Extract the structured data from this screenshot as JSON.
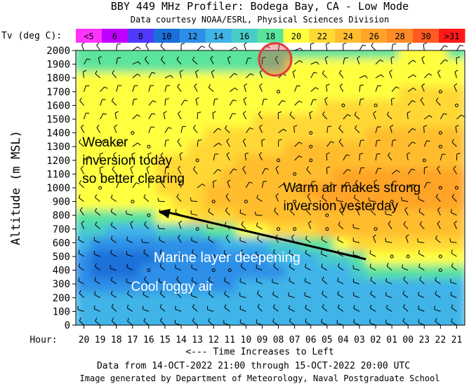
{
  "title": "BBY 449 MHz Profiler:    Bodega Bay, CA    - Low Mode",
  "subtitle": "Data courtesy NOAA/ESRL, Physical Sciences Division",
  "footer": {
    "line1": "Data from 14-OCT-2022 21:00 through 15-OCT-2022 20:00 UTC",
    "line2": "Image generated by Department of Meteorology, Naval Postgraduate School"
  },
  "colors": {
    "c_lt5": "#ff33ff",
    "c_6": "#c000ff",
    "c_8": "#5038ff",
    "c_10": "#1a6fd8",
    "c_12": "#2e8fe8",
    "c_14": "#40b4e8",
    "c_16": "#48ccc8",
    "c_18": "#5be39c",
    "c_20": "#ffff40",
    "c_22": "#ffd836",
    "c_24": "#ffbd2e",
    "c_26": "#ffa428",
    "c_28": "#ff8a28",
    "c_30": "#ff5a20",
    "c_gt31": "#ff1a1a",
    "arrow": "#000000",
    "highlight": "#e23a3a",
    "annotation_text": "#000000",
    "annotation_text_light": "#ffffff"
  },
  "chart_data": {
    "type": "heatmap",
    "title": "BBY 449 MHz Profiler:    Bodega Bay, CA    - Low Mode",
    "colorbar_label": "Tv (deg C):",
    "colorbar": [
      {
        "label": "<5",
        "color": "#ff33ff"
      },
      {
        "label": "6",
        "color": "#c000ff"
      },
      {
        "label": "8",
        "color": "#5038ff"
      },
      {
        "label": "10",
        "color": "#1a6fd8"
      },
      {
        "label": "12",
        "color": "#2e8fe8"
      },
      {
        "label": "14",
        "color": "#40b4e8"
      },
      {
        "label": "16",
        "color": "#48ccc8"
      },
      {
        "label": "18",
        "color": "#5be39c"
      },
      {
        "label": "20",
        "color": "#ffff40"
      },
      {
        "label": "22",
        "color": "#ffd836"
      },
      {
        "label": "24",
        "color": "#ffbd2e"
      },
      {
        "label": "26",
        "color": "#ffa428"
      },
      {
        "label": "28",
        "color": "#ff8a28"
      },
      {
        "label": "30",
        "color": "#ff5a20"
      },
      {
        "label": ">31",
        "color": "#ff1a1a"
      }
    ],
    "ylabel": "Altitude  (m MSL)",
    "ylim": [
      0,
      2000
    ],
    "yticks": [
      "0",
      "100",
      "200",
      "300",
      "400",
      "500",
      "600",
      "700",
      "800",
      "900",
      "1000",
      "1100",
      "1200",
      "1300",
      "1400",
      "1500",
      "1600",
      "1700",
      "1800",
      "1900",
      "2000"
    ],
    "xlabel": "Hour:",
    "xticks": [
      "20",
      "19",
      "18",
      "17",
      "16",
      "15",
      "14",
      "13",
      "12",
      "11",
      "10",
      "09",
      "08",
      "07",
      "06",
      "05",
      "04",
      "03",
      "02",
      "01",
      "00",
      "23",
      "22",
      "21"
    ],
    "xnote": "<--- Time Increases to Left",
    "hours": [
      20,
      19,
      18,
      17,
      16,
      15,
      14,
      13,
      12,
      11,
      10,
      9,
      8,
      7,
      6,
      5,
      4,
      3,
      2,
      1,
      0,
      23,
      22,
      21
    ],
    "altitudes": [
      0,
      100,
      200,
      300,
      400,
      500,
      600,
      700,
      800,
      900,
      1000,
      1100,
      1200,
      1300,
      1400,
      1500,
      1600,
      1700,
      1800,
      1900,
      2000
    ],
    "tv": [
      [
        15,
        15,
        15,
        15,
        15,
        15,
        15,
        15,
        15,
        15,
        15,
        15,
        15,
        15,
        15,
        15,
        15,
        15,
        15,
        15,
        15,
        15,
        15,
        15
      ],
      [
        15,
        15,
        15,
        15,
        15,
        15,
        15,
        15,
        15,
        15,
        15,
        15,
        15,
        15,
        15,
        15,
        15,
        15,
        15,
        15,
        15,
        15,
        15,
        15
      ],
      [
        14,
        14,
        14,
        14,
        14,
        14,
        14,
        14,
        14,
        14,
        14,
        14,
        15,
        15,
        15,
        15,
        15,
        15,
        15,
        15,
        15,
        15,
        15,
        15
      ],
      [
        13,
        13,
        12,
        12,
        12,
        13,
        13,
        13,
        13,
        13,
        14,
        14,
        14,
        14,
        14,
        14,
        15,
        15,
        15,
        15,
        15,
        15,
        15,
        15
      ],
      [
        12,
        11,
        11,
        11,
        12,
        12,
        12,
        12,
        12,
        12,
        12,
        13,
        13,
        14,
        14,
        15,
        15,
        17,
        19,
        19,
        19,
        19,
        19,
        19
      ],
      [
        12,
        11,
        11,
        11,
        11,
        12,
        12,
        12,
        12,
        12,
        13,
        13,
        14,
        14,
        15,
        16,
        17,
        19,
        21,
        21,
        21,
        21,
        21,
        21
      ],
      [
        14,
        12,
        12,
        12,
        12,
        12,
        12,
        13,
        13,
        14,
        14,
        15,
        16,
        17,
        18,
        19,
        21,
        23,
        23,
        23,
        23,
        23,
        23,
        23
      ],
      [
        17,
        16,
        15,
        15,
        15,
        16,
        16,
        17,
        18,
        19,
        20,
        21,
        22,
        23,
        23,
        24,
        24,
        24,
        25,
        25,
        25,
        25,
        25,
        25
      ],
      [
        19,
        19,
        19,
        18,
        19,
        20,
        21,
        22,
        23,
        23,
        24,
        24,
        25,
        25,
        25,
        25,
        25,
        25,
        25,
        25,
        25,
        25,
        25,
        25
      ],
      [
        21,
        21,
        21,
        21,
        21,
        21,
        22,
        23,
        24,
        24,
        25,
        25,
        25,
        25,
        25,
        26,
        26,
        26,
        26,
        26,
        26,
        26,
        26,
        26
      ],
      [
        21,
        21,
        21,
        21,
        21,
        22,
        23,
        23,
        24,
        24,
        25,
        25,
        25,
        25,
        26,
        26,
        26,
        26,
        26,
        26,
        26,
        26,
        26,
        26
      ],
      [
        21,
        21,
        21,
        21,
        21,
        22,
        23,
        23,
        23,
        24,
        24,
        25,
        25,
        25,
        25,
        25,
        26,
        26,
        26,
        26,
        26,
        26,
        26,
        26
      ],
      [
        21,
        21,
        21,
        21,
        21,
        22,
        22,
        22,
        23,
        23,
        24,
        24,
        24,
        24,
        25,
        25,
        25,
        25,
        25,
        25,
        25,
        25,
        25,
        25
      ],
      [
        21,
        21,
        21,
        21,
        21,
        21,
        21,
        22,
        22,
        22,
        23,
        23,
        23,
        24,
        24,
        24,
        24,
        24,
        25,
        25,
        25,
        25,
        25,
        25
      ],
      [
        21,
        21,
        21,
        21,
        21,
        21,
        21,
        21,
        22,
        22,
        22,
        22,
        22,
        23,
        23,
        23,
        23,
        23,
        24,
        24,
        24,
        24,
        24,
        24
      ],
      [
        21,
        21,
        21,
        21,
        21,
        21,
        21,
        21,
        21,
        21,
        21,
        22,
        22,
        22,
        22,
        22,
        22,
        23,
        23,
        23,
        23,
        23,
        23,
        23
      ],
      [
        21,
        21,
        21,
        21,
        21,
        21,
        21,
        21,
        21,
        21,
        21,
        21,
        21,
        21,
        21,
        22,
        22,
        22,
        22,
        22,
        22,
        22,
        22,
        22
      ],
      [
        21,
        21,
        21,
        21,
        21,
        21,
        21,
        21,
        21,
        21,
        21,
        21,
        21,
        21,
        21,
        21,
        21,
        21,
        21,
        21,
        22,
        22,
        22,
        22
      ],
      [
        21,
        21,
        21,
        21,
        21,
        21,
        21,
        21,
        21,
        21,
        21,
        21,
        21,
        21,
        21,
        21,
        21,
        21,
        21,
        21,
        21,
        21,
        21,
        21
      ],
      [
        19,
        19,
        19,
        19,
        19,
        19,
        19,
        19,
        19,
        19,
        19,
        19,
        19,
        21,
        21,
        21,
        21,
        21,
        21,
        21,
        21,
        21,
        21,
        21
      ],
      [
        19,
        19,
        19,
        19,
        19,
        19,
        19,
        19,
        19,
        19,
        19,
        19,
        19,
        19,
        19,
        19,
        19,
        19,
        19,
        19,
        21,
        21,
        21,
        19
      ]
    ],
    "annotations": [
      {
        "text": "Weaker\ninversion today\nso better clearing",
        "hour": 19.6,
        "alt": 1300
      },
      {
        "text": "Warm air makes strong\ninversion yesterday",
        "hour": 7.2,
        "alt": 970
      },
      {
        "text": "Marine layer deepening",
        "hour": 15.2,
        "alt": 460
      },
      {
        "text": "Cool foggy air",
        "hour": 16.6,
        "alt": 250
      }
    ],
    "trend_arrow": {
      "from": {
        "hour": 2.6,
        "alt": 480
      },
      "to": {
        "hour": 15.4,
        "alt": 830
      }
    },
    "highlight_circle": {
      "hour": 8.2,
      "alt": 1935
    }
  }
}
